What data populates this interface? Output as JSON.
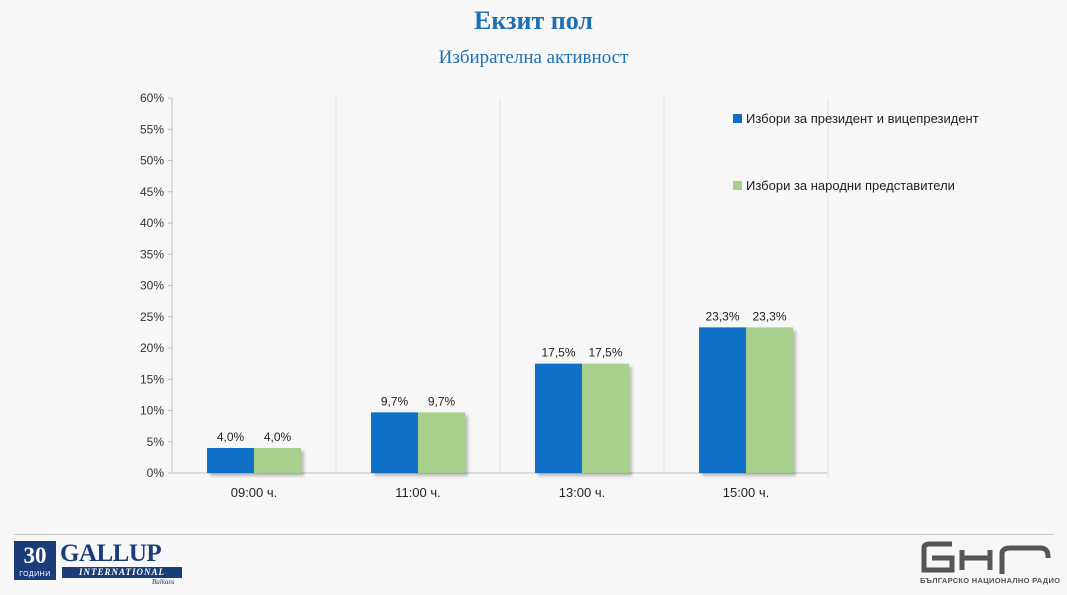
{
  "header": {
    "title": "Екзит пол",
    "subtitle": "Избирателна активност"
  },
  "chart_data": {
    "type": "bar",
    "title": "",
    "xlabel": "",
    "ylabel": "",
    "categories": [
      "09:00 ч.",
      "11:00 ч.",
      "13:00 ч.",
      "15:00 ч."
    ],
    "ylim": [
      0,
      60
    ],
    "yticks": [
      "0%",
      "5%",
      "10%",
      "15%",
      "20%",
      "25%",
      "30%",
      "35%",
      "40%",
      "45%",
      "50%",
      "55%",
      "60%"
    ],
    "grid": "vertical-category-separators",
    "legend_position": "top-right",
    "series": [
      {
        "name": "Избори за президент и вицепрезидент",
        "color": "#0f6fc6",
        "values": [
          4.0,
          9.7,
          17.5,
          23.3
        ],
        "labels": [
          "4,0%",
          "9,7%",
          "17,5%",
          "23,3%"
        ]
      },
      {
        "name": "Избори за народни представители",
        "color": "#a8d08d",
        "values": [
          4.0,
          9.7,
          17.5,
          23.3
        ],
        "labels": [
          "4,0%",
          "9,7%",
          "17,5%",
          "23,3%"
        ]
      }
    ]
  },
  "footer": {
    "gallup_number": "30",
    "gallup_years": "ГОДИНИ",
    "gallup_name": "GALLUP",
    "gallup_international": "INTERNATIONAL",
    "gallup_region": "Balkans",
    "bnr_caption": "БЪЛГАРСКО НАЦИОНАЛНО РАДИО"
  }
}
